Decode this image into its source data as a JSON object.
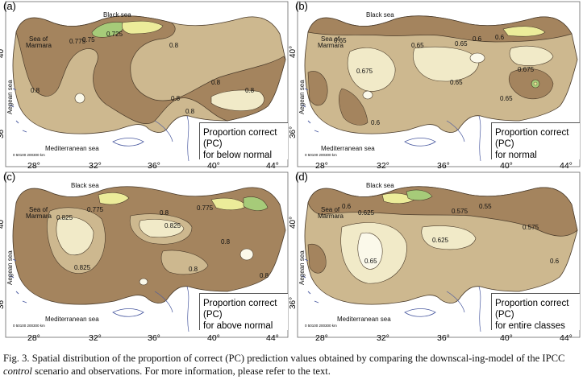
{
  "panels": [
    {
      "label": "(a)",
      "pc_title": "Proportion correct (PC)",
      "pc_subtitle": "for below normal",
      "contours": [
        "0.725",
        "0.75",
        "0.775",
        "0.8",
        "0.8",
        "0.8",
        "0.8",
        "0.8",
        "0.8"
      ]
    },
    {
      "label": "(b)",
      "pc_title": "Proportion correct (PC)",
      "pc_subtitle": "for normal",
      "contours": [
        "0.6",
        "0.6",
        "0.65",
        "0.65",
        "0.65",
        "0.675",
        "0.675",
        "0.65",
        "0.65",
        "0.6"
      ]
    },
    {
      "label": "(c)",
      "pc_title": "Proportion correct (PC)",
      "pc_subtitle": "for above normal",
      "contours": [
        "0.825",
        "0.825",
        "0.825",
        "0.8",
        "0.775",
        "0.775",
        "0.8",
        "0.8",
        "0.8"
      ]
    },
    {
      "label": "(d)",
      "pc_title": "Proportion correct (PC)",
      "pc_subtitle": "for entire classes",
      "contours": [
        "0.625",
        "0.65",
        "0.6",
        "0.55",
        "0.575",
        "0.625",
        "0.575",
        "0.6"
      ]
    }
  ],
  "seas": {
    "black": "Black sea",
    "marmara_1": "Sea of",
    "marmara_2": "Marmara",
    "aegean": "Aegean sea",
    "mediterranean": "Mediterranean sea"
  },
  "lat_ticks": [
    "40°",
    "36°"
  ],
  "lon_ticks": [
    "28°",
    "32°",
    "36°",
    "40°",
    "44°"
  ],
  "scale_label": "0 50100 200300 km",
  "colors": {
    "dark": "#a4845e",
    "mid": "#cdb88f",
    "light": "#f1eac8",
    "pale": "#fbf9ea",
    "yellow": "#ecec9a",
    "green": "#a6cb79"
  },
  "caption": {
    "part1": "Fig. 3. Spatial distribution of the proportion of correct (PC) prediction values obtained by comparing the downscal-ing-model of the IPCC ",
    "italic": "control",
    "part2": " scenario and observations. For more information, please refer to the text."
  }
}
